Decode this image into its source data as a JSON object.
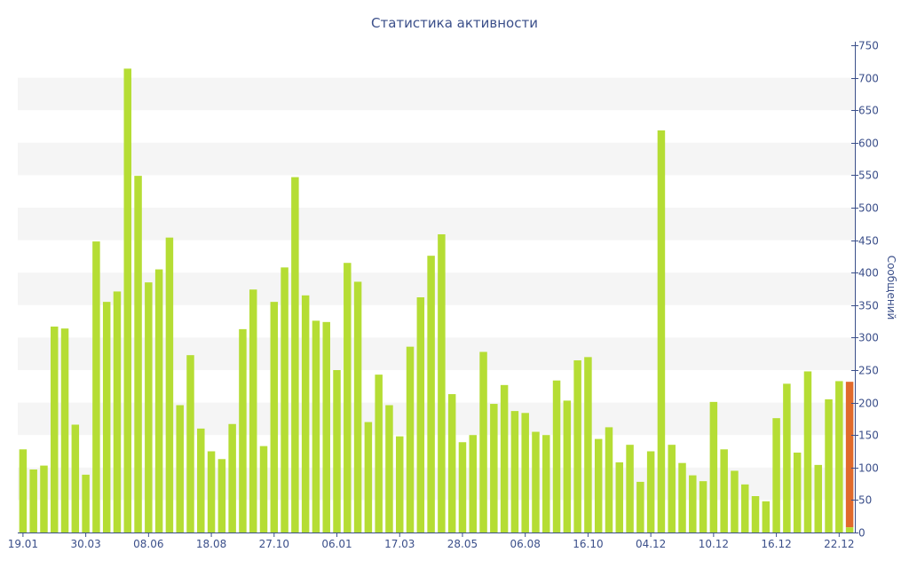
{
  "chart_data": {
    "type": "bar",
    "title": "Статистика активности",
    "xlabel": "",
    "ylabel": "Сообщений",
    "ylim": [
      0,
      750
    ],
    "y_ticks": [
      0,
      50,
      100,
      150,
      200,
      250,
      300,
      350,
      400,
      450,
      500,
      550,
      600,
      650,
      700,
      750
    ],
    "x_tick_labels": [
      {
        "index": 0,
        "label": "19.01"
      },
      {
        "index": 6,
        "label": "30.03"
      },
      {
        "index": 12,
        "label": "08.06"
      },
      {
        "index": 18,
        "label": "18.08"
      },
      {
        "index": 24,
        "label": "27.10"
      },
      {
        "index": 30,
        "label": "06.01"
      },
      {
        "index": 36,
        "label": "17.03"
      },
      {
        "index": 42,
        "label": "28.05"
      },
      {
        "index": 48,
        "label": "06.08"
      },
      {
        "index": 54,
        "label": "16.10"
      },
      {
        "index": 60,
        "label": "04.12"
      },
      {
        "index": 66,
        "label": "10.12"
      },
      {
        "index": 72,
        "label": "16.12"
      },
      {
        "index": 78,
        "label": "22.12"
      }
    ],
    "y_axis_side": "right",
    "grid": "horizontal alternating bands",
    "legend": "none",
    "colors": {
      "bar": "#b5dd34",
      "highlight": "#e06a2c",
      "axis": "#3b4f8a",
      "band": "#f5f5f5"
    },
    "series": [
      {
        "values": [
          128,
          97,
          103,
          317,
          314,
          166,
          89,
          448,
          355,
          371,
          714,
          549,
          385,
          405,
          454,
          196,
          273,
          160,
          125,
          113,
          167,
          313,
          374,
          133,
          355,
          408,
          547,
          365,
          326,
          324,
          250,
          415,
          386,
          170,
          243,
          196,
          148,
          286,
          362,
          426,
          459,
          213,
          139,
          150,
          278,
          198,
          227,
          187,
          184,
          155,
          150,
          234,
          203,
          265,
          270,
          144,
          162,
          108,
          135,
          78,
          125,
          619,
          135,
          107,
          88,
          79,
          201,
          128,
          95,
          74,
          56,
          48,
          176,
          229,
          123,
          248,
          104,
          205,
          233,
          232
        ]
      }
    ],
    "highlight": {
      "index": 79,
      "value": 232,
      "bottom_segment_value": 8
    }
  }
}
